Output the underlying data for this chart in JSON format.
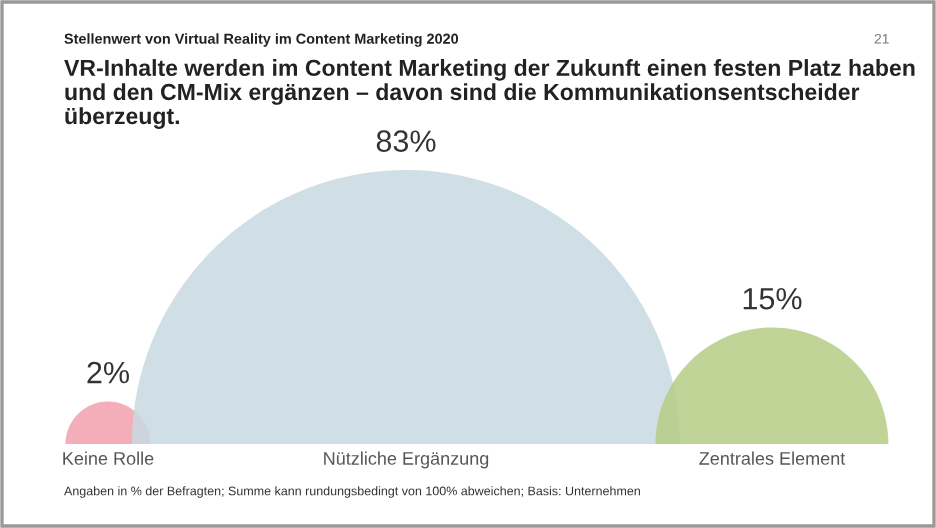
{
  "chart_data": {
    "type": "other",
    "title": "Stellenwert von Virtual Reality im Content Marketing 2020",
    "subtitle": "VR-Inhalte werden im Content Marketing der Zukunft einen festen Platz haben und den CM-Mix ergänzen – davon sind die Kommunikationsentscheider überzeugt.",
    "categories": [
      "Keine Rolle",
      "Nützliche Ergänzung",
      "Zentrales Element"
    ],
    "values": [
      2,
      83,
      15
    ],
    "colors": [
      "#f2a0ae",
      "#c8d9e1",
      "#b5cd86"
    ],
    "value_labels": [
      "2%",
      "83%",
      "15%"
    ],
    "annotations": [
      "21",
      "Angaben in % der Befragten; Summe kann rundungsbedingt von 100% abweichen; Basis: Unternehmen"
    ]
  }
}
